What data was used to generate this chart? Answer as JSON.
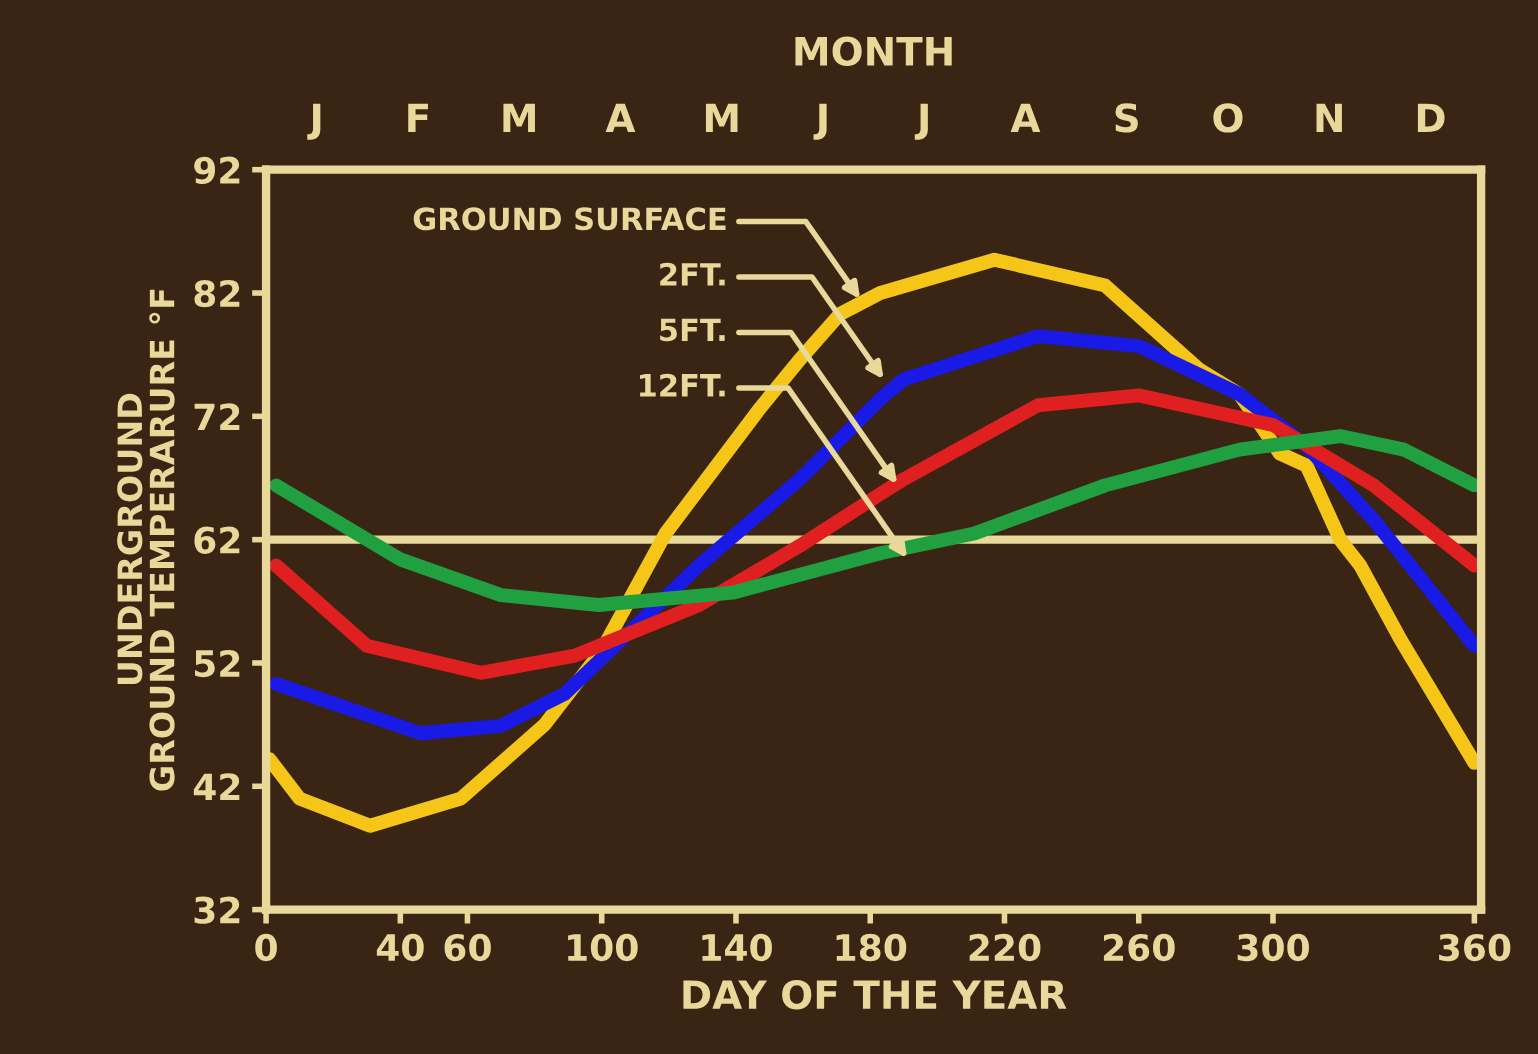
{
  "chart_data": {
    "type": "line",
    "x2label": "MONTH",
    "xlabel": "DAY OF THE YEAR",
    "ylabel": "UNDERGROUND\nGROUND TEMPERARURE °F",
    "xlim": [
      0,
      362
    ],
    "xticks": [
      0,
      40,
      60,
      100,
      140,
      180,
      220,
      260,
      300,
      360
    ],
    "ylim": [
      32,
      92
    ],
    "yticks": [
      32,
      42,
      52,
      62,
      72,
      82,
      92
    ],
    "grid": false,
    "legend": false,
    "marker": "none",
    "line_style": "solid",
    "ref_lines": [
      {
        "axis": "y",
        "value": 62,
        "color": "#e8d89a"
      }
    ],
    "series": [
      {
        "color": "#f5c518",
        "x": [
          1,
          10,
          31,
          58,
          83,
          100,
          119,
          147,
          159,
          171,
          183,
          217,
          250,
          278,
          290,
          302,
          310,
          320,
          326,
          338,
          360
        ],
        "values": [
          44.2,
          41,
          38.8,
          41,
          47,
          53,
          62.5,
          72.6,
          76.6,
          80.3,
          82,
          84.7,
          82.6,
          75.8,
          73.8,
          69,
          68,
          62,
          59.9,
          53.9,
          43.9
        ]
      },
      {
        "color": "#1a1ae6",
        "x": [
          3,
          46,
          70,
          89,
          129,
          159,
          183,
          190,
          230,
          260,
          290,
          310,
          330,
          360
        ],
        "values": [
          50.3,
          46.3,
          46.9,
          49.5,
          59.9,
          66.9,
          73.4,
          75,
          78.5,
          77.7,
          73.8,
          69.6,
          63.6,
          53.4
        ]
      },
      {
        "color": "#e02020",
        "x": [
          3,
          30,
          64,
          92,
          129,
          159,
          183,
          190,
          230,
          260,
          300,
          330,
          360
        ],
        "values": [
          59.9,
          53.4,
          51.2,
          52.6,
          56.7,
          61.5,
          65.7,
          66.9,
          72.9,
          73.7,
          71.3,
          66.4,
          59.9
        ]
      },
      {
        "color": "#20a040",
        "x": [
          3,
          40,
          70,
          99,
          139,
          183,
          211,
          250,
          290,
          320,
          339,
          360
        ],
        "values": [
          66.4,
          60.4,
          57.5,
          56.7,
          57.7,
          60.9,
          62.5,
          66.4,
          69.3,
          70.4,
          69.3,
          66.4
        ]
      }
    ],
    "annotations": [
      {
        "text": "GROUND SURFACE",
        "x": 177,
        "y": 81.5
      },
      {
        "text": "2FT.",
        "x": 184,
        "y": 75
      },
      {
        "text": "5FT.",
        "x": 188,
        "y": 66.5
      },
      {
        "text": "12FT.",
        "x": 191,
        "y": 60.5
      },
      "J",
      "F",
      "M",
      "A",
      "M",
      "J",
      "J",
      "A",
      "S",
      "O",
      "N",
      "D"
    ]
  }
}
